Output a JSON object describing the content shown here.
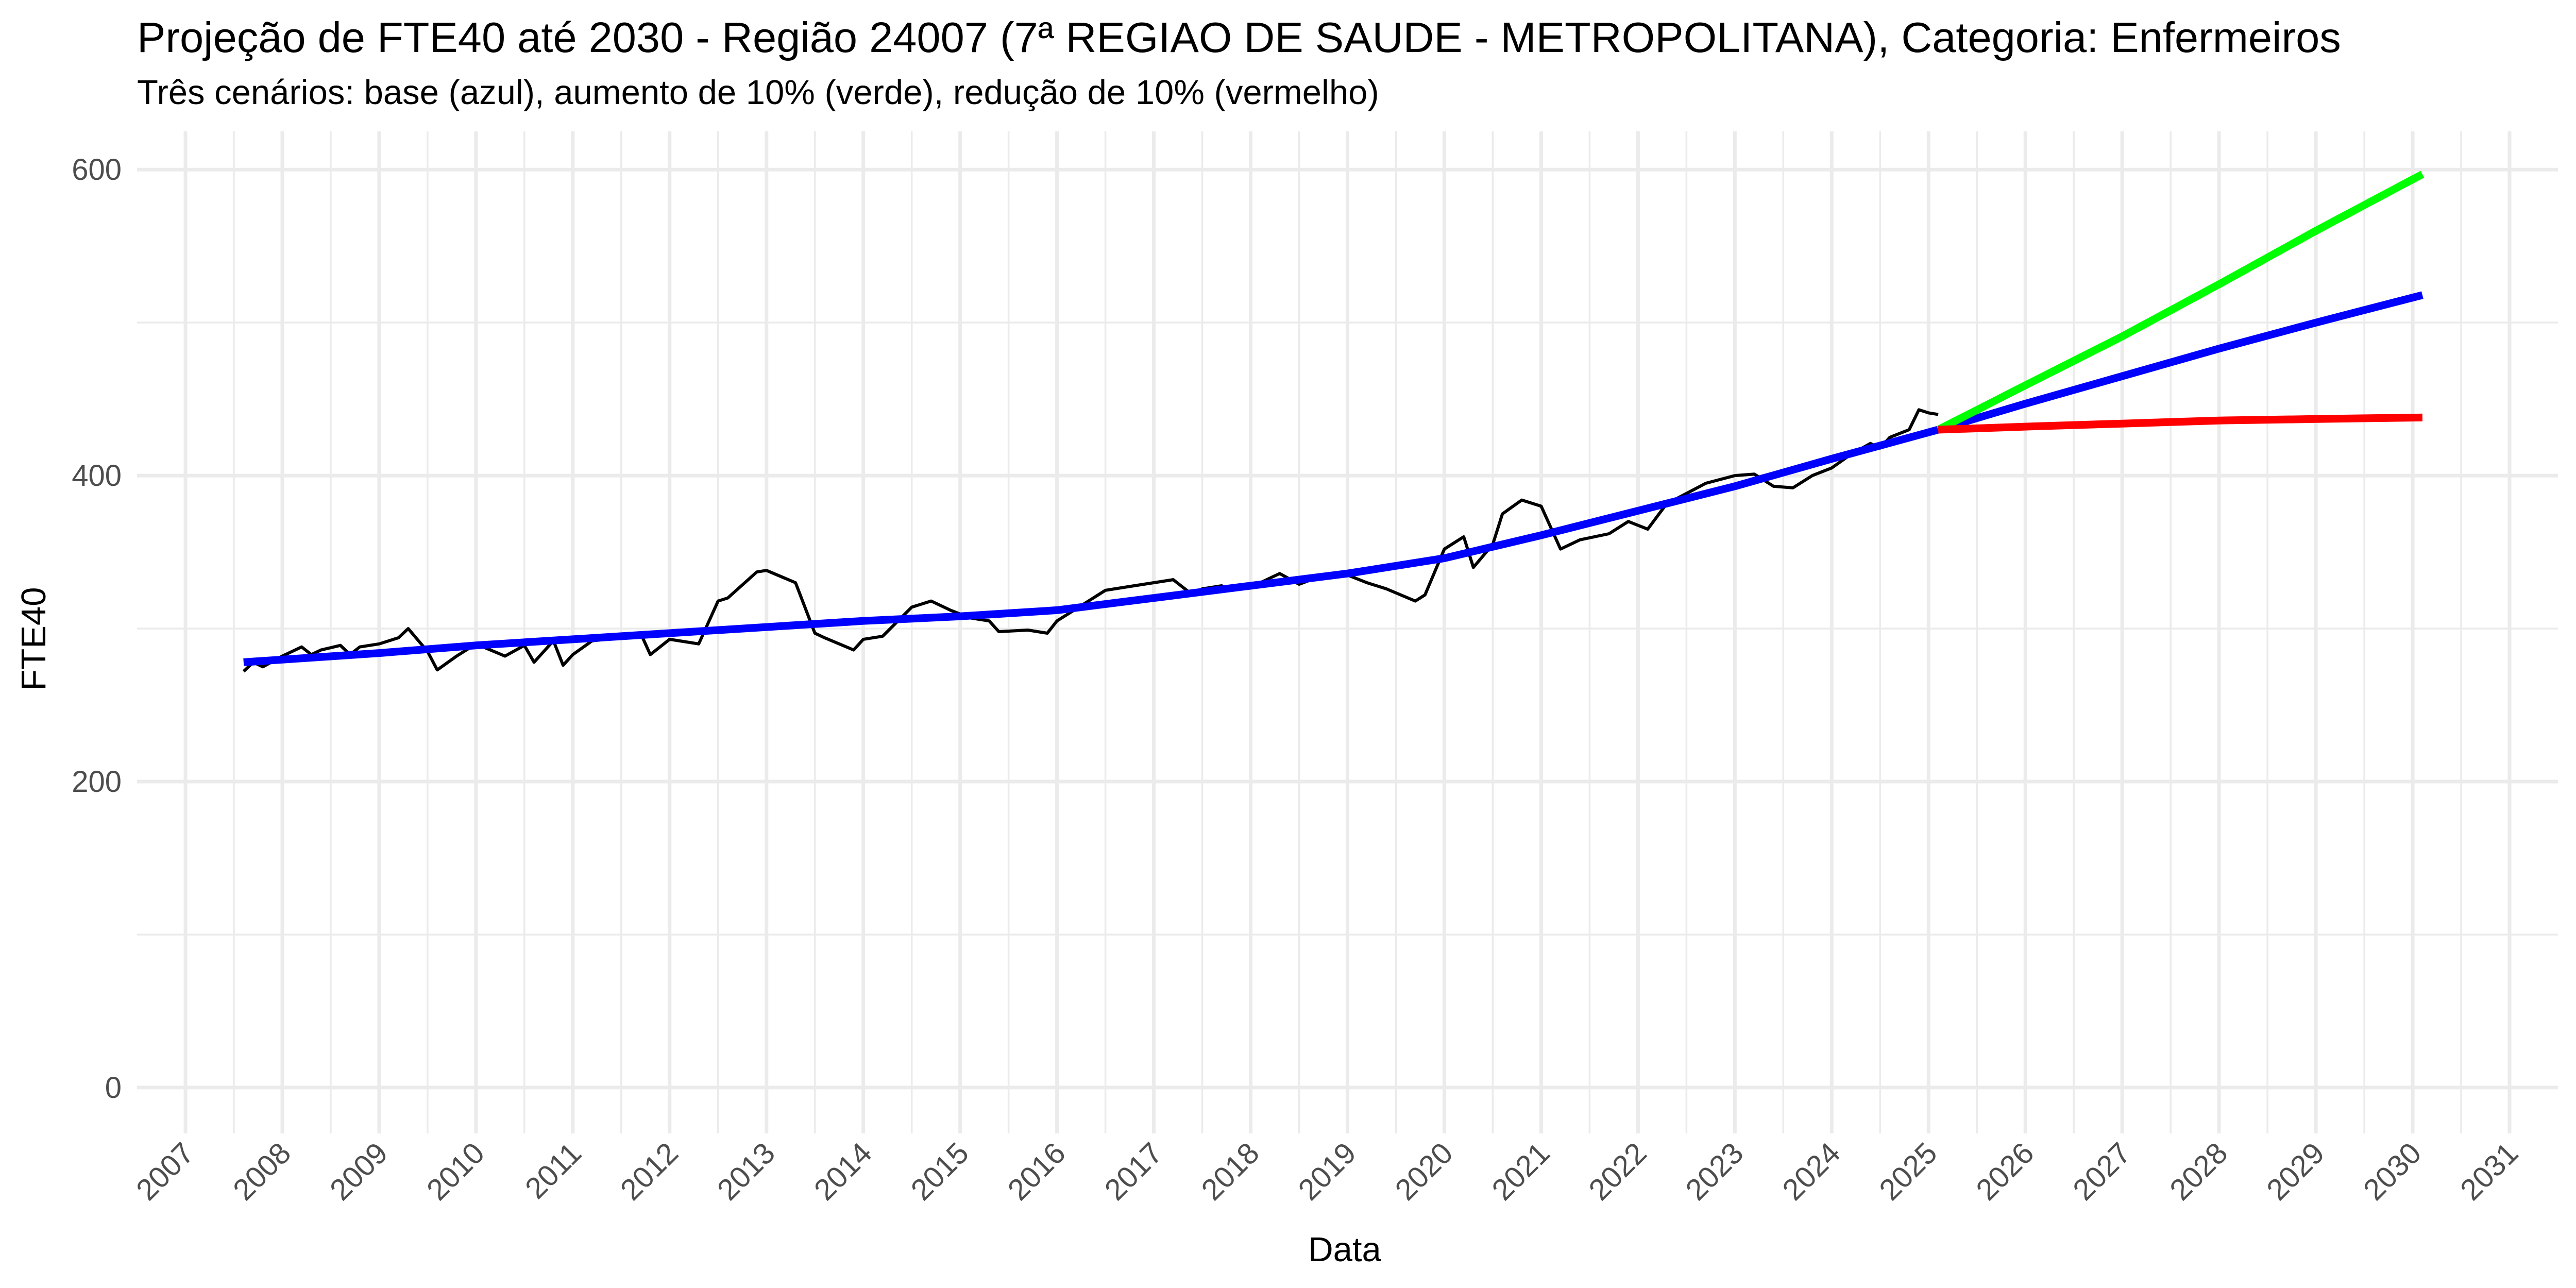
{
  "chart_data": {
    "type": "line",
    "title": "Projeção de FTE40 até 2030 - Região 24007 (7ª REGIAO DE SAUDE - METROPOLITANA), Categoria: Enfermeiros",
    "subtitle": "Três cenários: base (azul), aumento de 10% (verde), redução de 10% (vermelho)",
    "xlabel": "Data",
    "ylabel": "FTE40",
    "xlim": [
      2006.5,
      2031.5
    ],
    "ylim": [
      -30,
      625
    ],
    "x_ticks": [
      "2007",
      "2008",
      "2009",
      "2010",
      "2011",
      "2012",
      "2013",
      "2014",
      "2015",
      "2016",
      "2017",
      "2018",
      "2019",
      "2020",
      "2021",
      "2022",
      "2023",
      "2024",
      "2025",
      "2026",
      "2027",
      "2028",
      "2029",
      "2030",
      "2031"
    ],
    "y_ticks": [
      0,
      200,
      400,
      600
    ],
    "grid": true,
    "legend": "none",
    "colors": {
      "observed": "#000000",
      "base": "#0000ff",
      "increase": "#00ff00",
      "decrease": "#ff0000",
      "grid": "#ebebeb"
    },
    "series": [
      {
        "key": "observed",
        "x": [
          2007.6,
          2007.7,
          2007.8,
          2008.0,
          2008.2,
          2008.3,
          2008.4,
          2008.6,
          2008.7,
          2008.8,
          2009.0,
          2009.2,
          2009.3,
          2009.5,
          2009.6,
          2009.8,
          2010.0,
          2010.3,
          2010.5,
          2010.6,
          2010.8,
          2010.9,
          2011.0,
          2011.2,
          2011.5,
          2011.7,
          2011.8,
          2012.0,
          2012.3,
          2012.5,
          2012.6,
          2012.9,
          2013.0,
          2013.3,
          2013.5,
          2013.6,
          2013.9,
          2014.0,
          2014.2,
          2014.5,
          2014.7,
          2014.9,
          2015.1,
          2015.3,
          2015.4,
          2015.7,
          2015.9,
          2016.0,
          2016.2,
          2016.5,
          2016.8,
          2017.0,
          2017.2,
          2017.4,
          2017.5,
          2017.7,
          2017.8,
          2018.0,
          2018.3,
          2018.5,
          2018.8,
          2019.0,
          2019.2,
          2019.4,
          2019.7,
          2019.8,
          2020.0,
          2020.2,
          2020.3,
          2020.5,
          2020.6,
          2020.8,
          2021.0,
          2021.2,
          2021.4,
          2021.7,
          2021.9,
          2022.1,
          2022.3,
          2022.4,
          2022.7,
          2023.0,
          2023.2,
          2023.4,
          2023.6,
          2023.8,
          2024.0,
          2024.2,
          2024.4,
          2024.5,
          2024.6,
          2024.8,
          2024.9,
          2025.0,
          2025.1
        ],
        "y": [
          272,
          278,
          275,
          282,
          288,
          283,
          286,
          289,
          283,
          288,
          290,
          294,
          300,
          285,
          273,
          282,
          290,
          282,
          289,
          278,
          292,
          276,
          283,
          292,
          294,
          297,
          283,
          293,
          290,
          318,
          320,
          337,
          338,
          330,
          297,
          294,
          286,
          293,
          295,
          314,
          318,
          312,
          307,
          305,
          298,
          299,
          297,
          305,
          313,
          325,
          328,
          330,
          332,
          322,
          326,
          328,
          325,
          327,
          336,
          329,
          336,
          335,
          330,
          326,
          318,
          322,
          352,
          360,
          340,
          355,
          375,
          384,
          380,
          352,
          358,
          362,
          370,
          365,
          382,
          385,
          395,
          400,
          401,
          393,
          392,
          400,
          405,
          414,
          421,
          418,
          425,
          430,
          443,
          441,
          440
        ]
      },
      {
        "key": "base",
        "x": [
          2007.6,
          2009,
          2010,
          2011,
          2012,
          2013,
          2014,
          2015,
          2016,
          2017,
          2018,
          2019,
          2020,
          2021,
          2022,
          2023,
          2024,
          2025.1,
          2026,
          2027,
          2028,
          2029,
          2030.1
        ],
        "y": [
          278,
          284,
          289,
          293,
          297,
          301,
          305,
          308,
          312,
          320,
          328,
          336,
          346,
          361,
          377,
          393,
          411,
          430,
          447,
          465,
          483,
          500,
          518
        ]
      },
      {
        "key": "increase",
        "x": [
          2025.1,
          2026,
          2027,
          2028,
          2029,
          2030.1
        ],
        "y": [
          430,
          459,
          491,
          525,
          560,
          597
        ]
      },
      {
        "key": "decrease",
        "x": [
          2025.1,
          2026,
          2027,
          2028,
          2029,
          2030.1
        ],
        "y": [
          430,
          432,
          434,
          436,
          437,
          438
        ]
      }
    ]
  }
}
